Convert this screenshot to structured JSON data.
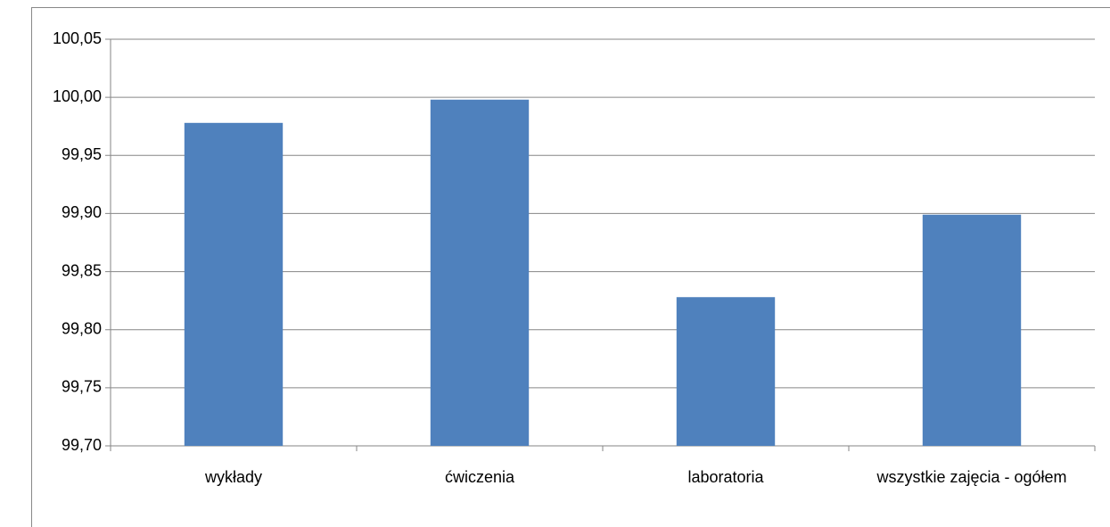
{
  "chart_data": {
    "type": "bar",
    "categories": [
      "wykłady",
      "ćwiczenia",
      "laboratoria",
      "wszystkie zajęcia - ogółem"
    ],
    "values": [
      99.978,
      99.998,
      99.828,
      99.899
    ],
    "color": "#4f81bd",
    "ylim": [
      99.7,
      100.05
    ],
    "yticks": [
      {
        "value": 99.7,
        "label": "99,70"
      },
      {
        "value": 99.75,
        "label": "99,75"
      },
      {
        "value": 99.8,
        "label": "99,80"
      },
      {
        "value": 99.85,
        "label": "99,85"
      },
      {
        "value": 99.9,
        "label": "99,90"
      },
      {
        "value": 99.95,
        "label": "99,95"
      },
      {
        "value": 100.0,
        "label": "100,00"
      },
      {
        "value": 100.05,
        "label": "100,05"
      }
    ],
    "grid": true
  }
}
